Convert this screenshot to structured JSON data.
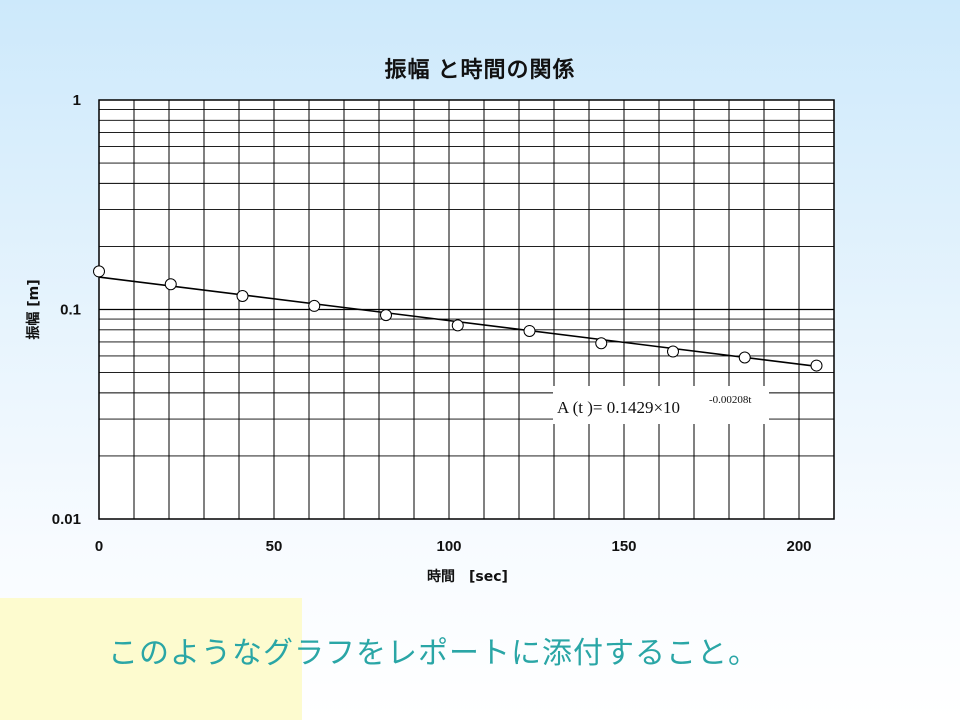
{
  "slide": {
    "caption": "このようなグラフをレポートに添付すること。",
    "colors": {
      "background_top": "#cde9fb",
      "panel": "#fdfbcf",
      "caption": "#2aa6a6"
    }
  },
  "chart_data": {
    "type": "scatter",
    "title": "振幅 と時間の関係",
    "xlabel": "時間　[sec]",
    "ylabel": "振幅 [m]",
    "xlim": [
      0,
      210
    ],
    "ylim": [
      0.01,
      1
    ],
    "y_scale": "log",
    "grid": true,
    "x_ticks": [
      0,
      50,
      100,
      150,
      200
    ],
    "x_tick_labels": [
      "0",
      "50",
      "100",
      "150",
      "200"
    ],
    "y_ticks": [
      0.01,
      0.1,
      1
    ],
    "y_tick_labels": [
      "0.01",
      "0.1",
      "1"
    ],
    "series": [
      {
        "marker": "open-circle",
        "x": [
          0,
          20.5,
          41,
          61.5,
          82,
          102.5,
          123,
          143.5,
          164,
          184.5,
          205
        ],
        "y": [
          0.152,
          0.132,
          0.116,
          0.104,
          0.094,
          0.084,
          0.079,
          0.069,
          0.063,
          0.059,
          0.054
        ]
      }
    ],
    "fit_line": {
      "a": 0.1429,
      "b": -0.00208,
      "x_range": [
        0,
        205
      ]
    },
    "equation": {
      "prefix": "A (t )= 0.1429×10",
      "exponent": "-0.00208t"
    }
  }
}
